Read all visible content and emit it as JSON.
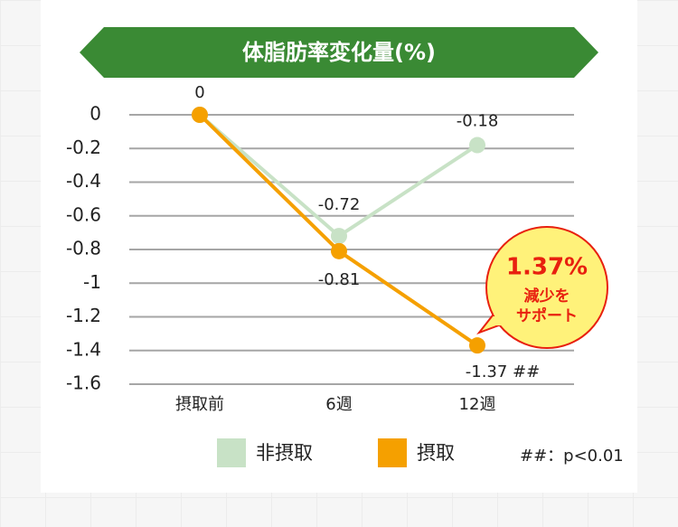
{
  "chart_data": {
    "type": "line",
    "title": "体脂肪率変化量(%)",
    "categories": [
      "摂取前",
      "6週",
      "12週"
    ],
    "series": [
      {
        "name": "非摂取",
        "color": "#c8e2c6",
        "values": [
          0,
          -0.72,
          -0.18
        ],
        "value_labels": [
          "0",
          "-0.72",
          "-0.18"
        ]
      },
      {
        "name": "摂取",
        "color": "#f5a000",
        "values": [
          0,
          -0.81,
          -1.37
        ],
        "value_labels": [
          null,
          "-0.81",
          "-1.37 ##"
        ]
      }
    ],
    "ylim": [
      -1.6,
      0
    ],
    "yticks": [
      0,
      -0.2,
      -0.4,
      -0.6,
      -0.8,
      -1,
      -1.2,
      -1.4,
      -1.6
    ],
    "grid": true,
    "annotations": [
      "1.37%",
      "減少を",
      "サポート"
    ],
    "note": "##：p<0.01"
  }
}
